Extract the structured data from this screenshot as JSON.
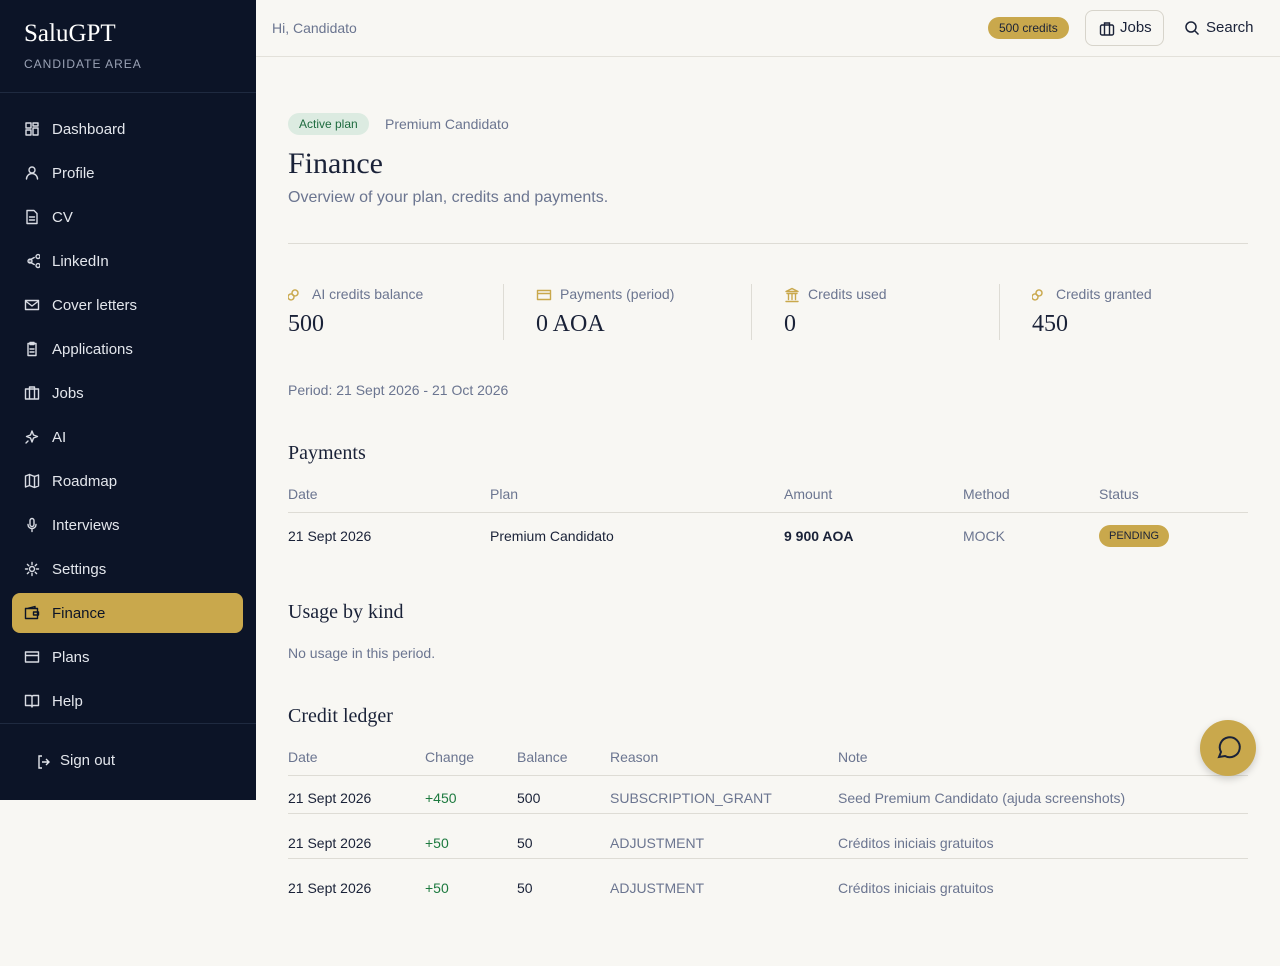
{
  "sidebar": {
    "brand": "SaluGPT",
    "subtitle": "CANDIDATE AREA",
    "nav": [
      {
        "label": "Dashboard"
      },
      {
        "label": "Profile"
      },
      {
        "label": "CV"
      },
      {
        "label": "LinkedIn"
      },
      {
        "label": "Cover letters"
      },
      {
        "label": "Applications"
      },
      {
        "label": "Jobs"
      },
      {
        "label": "AI"
      },
      {
        "label": "Roadmap"
      },
      {
        "label": "Interviews"
      },
      {
        "label": "Settings"
      },
      {
        "label": "Finance",
        "active": true
      },
      {
        "label": "Plans"
      },
      {
        "label": "Help"
      }
    ],
    "sign_out": "Sign out"
  },
  "topbar": {
    "greeting": "Hi, Candidato",
    "credits": "500 credits",
    "jobs": "Jobs",
    "search": "Search"
  },
  "header": {
    "badge": "Active plan",
    "plan": "Premium Candidato",
    "title": "Finance",
    "subtitle": "Overview of your plan, credits and payments."
  },
  "stats": [
    {
      "label": "AI credits balance",
      "value": "500"
    },
    {
      "label": "Payments (period)",
      "value": "0 AOA"
    },
    {
      "label": "Credits used",
      "value": "0"
    },
    {
      "label": "Credits granted",
      "value": "450"
    }
  ],
  "period": "Period: 21 Sept 2026 - 21 Oct 2026",
  "payments": {
    "title": "Payments",
    "columns": [
      "Date",
      "Plan",
      "Amount",
      "Method",
      "Status"
    ],
    "rows": [
      [
        "21 Sept 2026",
        "Premium Candidato",
        "9 900 AOA",
        "MOCK",
        "PENDING"
      ]
    ]
  },
  "usage": {
    "title": "Usage by kind",
    "empty": "No usage in this period."
  },
  "ledger": {
    "title": "Credit ledger",
    "columns": [
      "Date",
      "Change",
      "Balance",
      "Reason",
      "Note"
    ],
    "rows": [
      [
        "21 Sept 2026",
        "+450",
        "500",
        "SUBSCRIPTION_GRANT",
        "Seed Premium Candidato (ajuda screenshots)"
      ],
      [
        "21 Sept 2026",
        "+50",
        "50",
        "ADJUSTMENT",
        "Créditos iniciais gratuitos"
      ],
      [
        "21 Sept 2026",
        "+50",
        "50",
        "ADJUSTMENT",
        "Créditos iniciais gratuitos"
      ]
    ]
  }
}
